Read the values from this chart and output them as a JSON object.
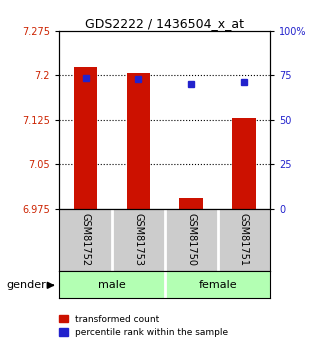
{
  "title": "GDS2222 / 1436504_x_at",
  "samples": [
    "GSM81752",
    "GSM81753",
    "GSM81750",
    "GSM81751"
  ],
  "ylim_left": [
    6.975,
    7.275
  ],
  "ylim_right": [
    0,
    100
  ],
  "yticks_left": [
    6.975,
    7.05,
    7.125,
    7.2,
    7.275
  ],
  "yticks_right": [
    0,
    25,
    50,
    75,
    100
  ],
  "ytick_labels_right": [
    "0",
    "25",
    "50",
    "75",
    "100%"
  ],
  "bar_bottom": 6.975,
  "bar_tops": [
    7.215,
    7.205,
    6.993,
    7.128
  ],
  "percentile_values": [
    73.5,
    73.0,
    70.0,
    71.5
  ],
  "bar_color": "#cc1100",
  "percentile_color": "#2222cc",
  "gridline_values": [
    7.05,
    7.125,
    7.2
  ],
  "legend_red_label": "transformed count",
  "legend_blue_label": "percentile rank within the sample",
  "gender_label": "gender",
  "x_positions": [
    0,
    1,
    2,
    3
  ],
  "bar_width": 0.45,
  "gender_color": "#b3ffb3",
  "sample_box_color": "#cccccc",
  "background_color": "#ffffff",
  "left_axis_color": "#cc2200",
  "right_axis_color": "#2222cc"
}
